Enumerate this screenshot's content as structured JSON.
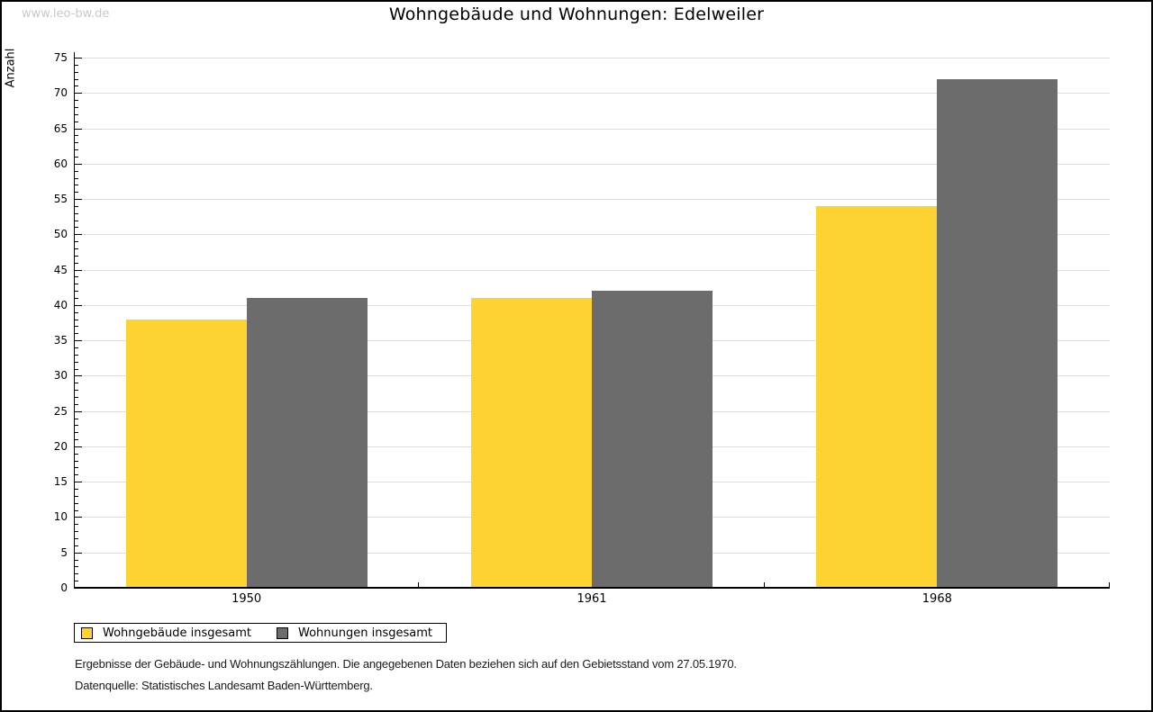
{
  "page": {
    "watermark": "www.leo-bw.de",
    "title": "Wohngebäude und Wohnungen: Edelweiler",
    "footnote_line1": "Ergebnisse der Gebäude- und Wohnungszählungen. Die angegebenen Daten beziehen sich auf den Gebietsstand vom 27.05.1970.",
    "footnote_line2": "Datenquelle: Statistisches Landesamt Baden-Württemberg."
  },
  "chart_data": {
    "type": "bar",
    "title": "Wohngebäude und Wohnungen: Edelweiler",
    "xlabel": "",
    "ylabel": "Anzahl",
    "categories": [
      "1950",
      "1961",
      "1968"
    ],
    "series": [
      {
        "name": "Wohngebäude insgesamt",
        "color": "#FCD330",
        "values": [
          38,
          41,
          54
        ]
      },
      {
        "name": "Wohnungen insgesamt",
        "color": "#6C6C6C",
        "values": [
          41,
          42,
          72
        ]
      }
    ],
    "ylim": [
      0,
      75
    ],
    "ytick_step": 5,
    "minor_tick_step": 1,
    "grid": true,
    "gridline_color": "#dedede",
    "axis_color": "#000000",
    "legend_position": "bottom-left"
  }
}
